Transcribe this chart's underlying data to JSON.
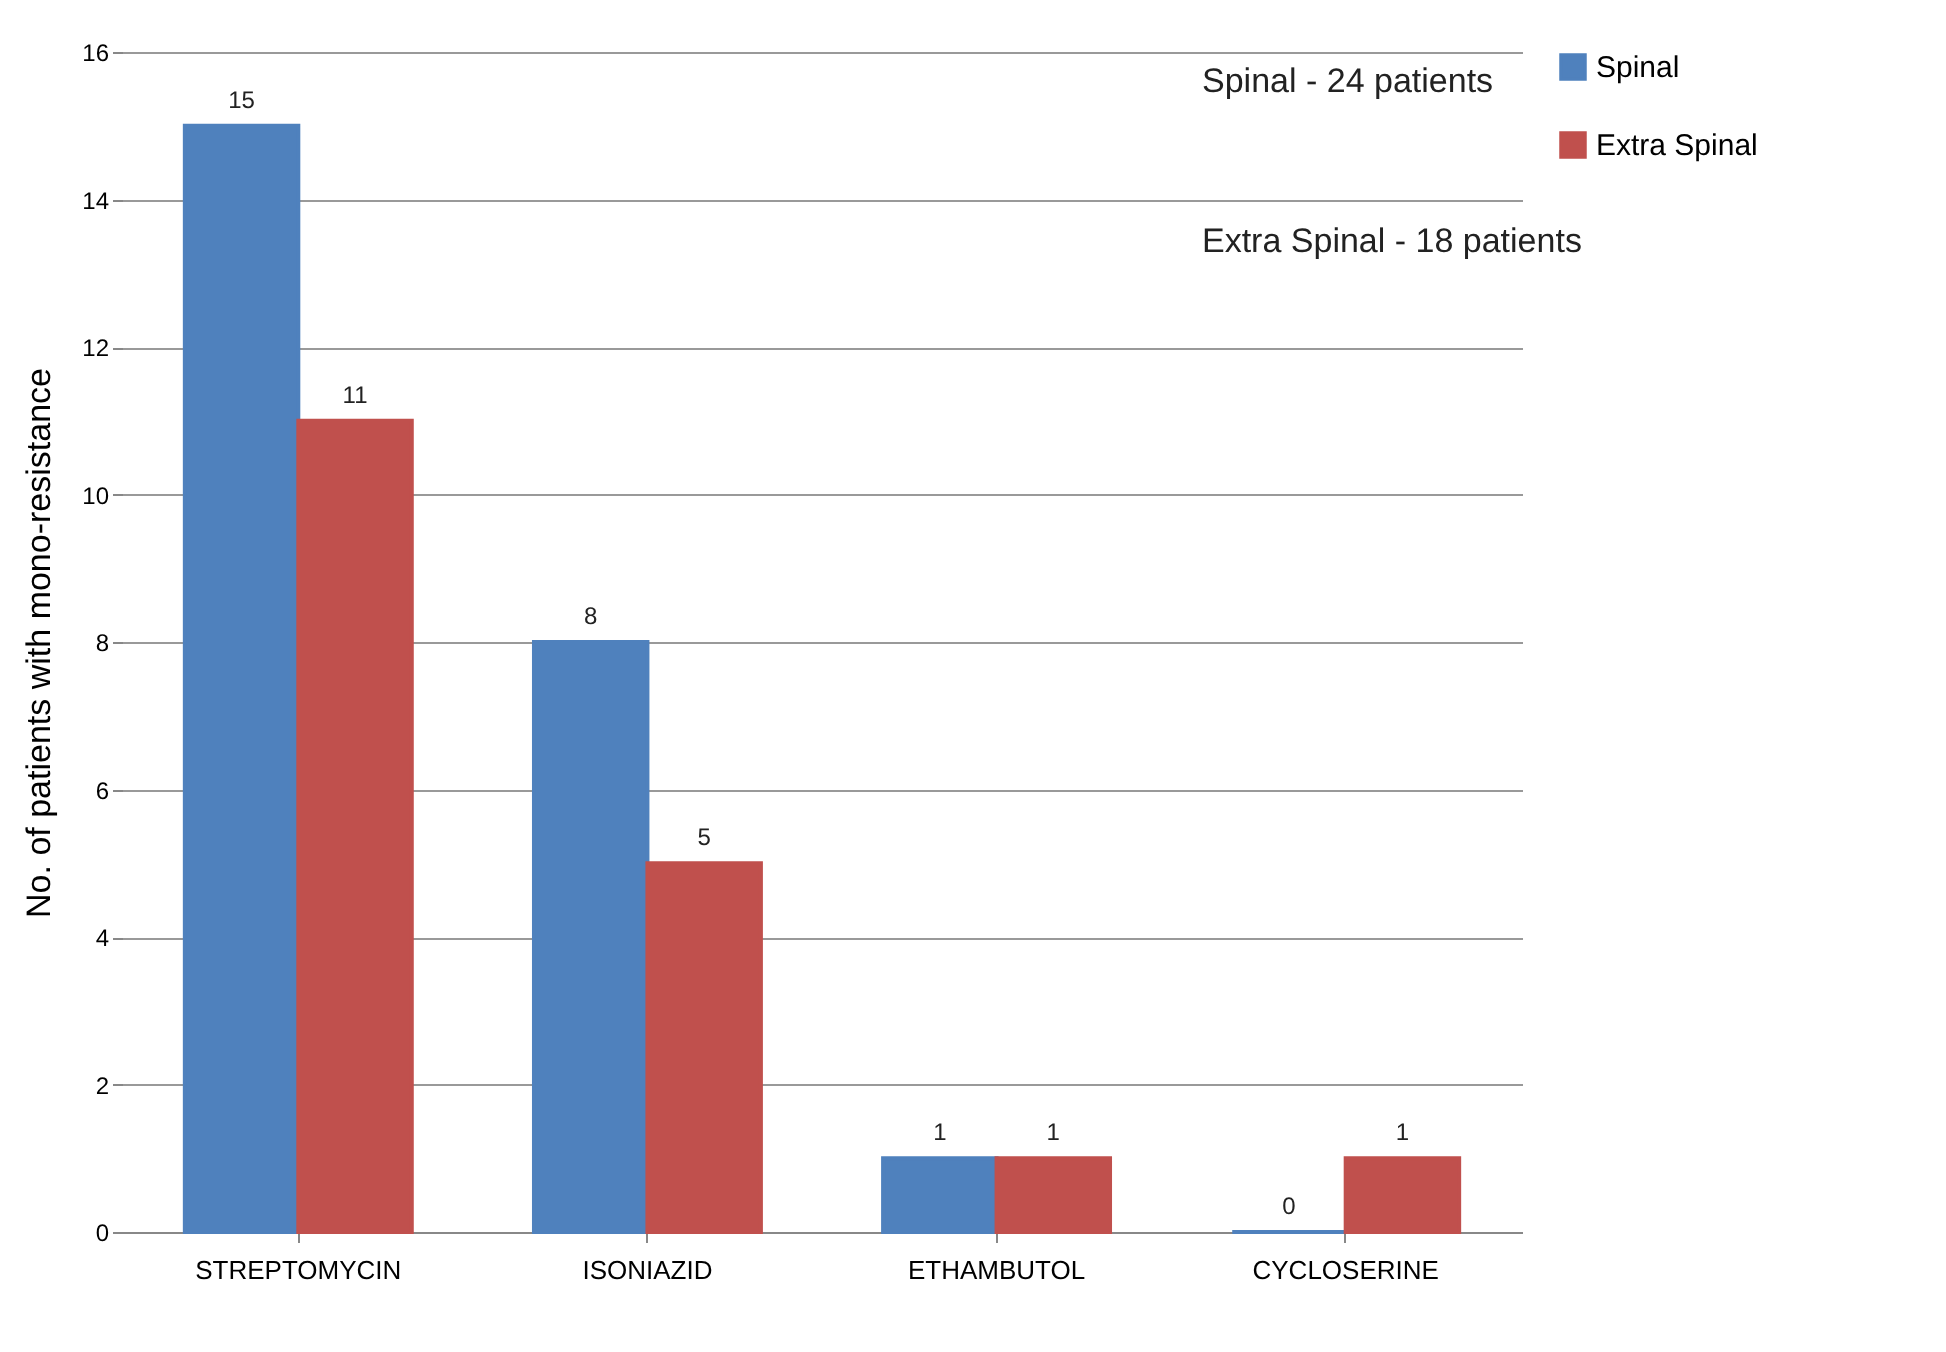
{
  "chart_data": {
    "type": "bar",
    "ylabel": "No. of patients with mono-resistance",
    "categories": [
      "STREPTOMYCIN",
      "ISONIAZID",
      "ETHAMBUTOL",
      "CYCLOSERINE"
    ],
    "series": [
      {
        "name": "Spinal",
        "color": "#4f81bd",
        "values": [
          15,
          8,
          1,
          0
        ]
      },
      {
        "name": "Extra Spinal",
        "color": "#c0504d",
        "values": [
          11,
          5,
          1,
          1
        ]
      }
    ],
    "ylim": [
      0,
      16
    ],
    "yticks": [
      0,
      2,
      4,
      6,
      8,
      10,
      12,
      14,
      16
    ],
    "grid": "y",
    "legend": "right",
    "data_labels": true,
    "annotations": [
      "Spinal - 24 patients",
      "Extra Spinal - 18 patients"
    ]
  }
}
